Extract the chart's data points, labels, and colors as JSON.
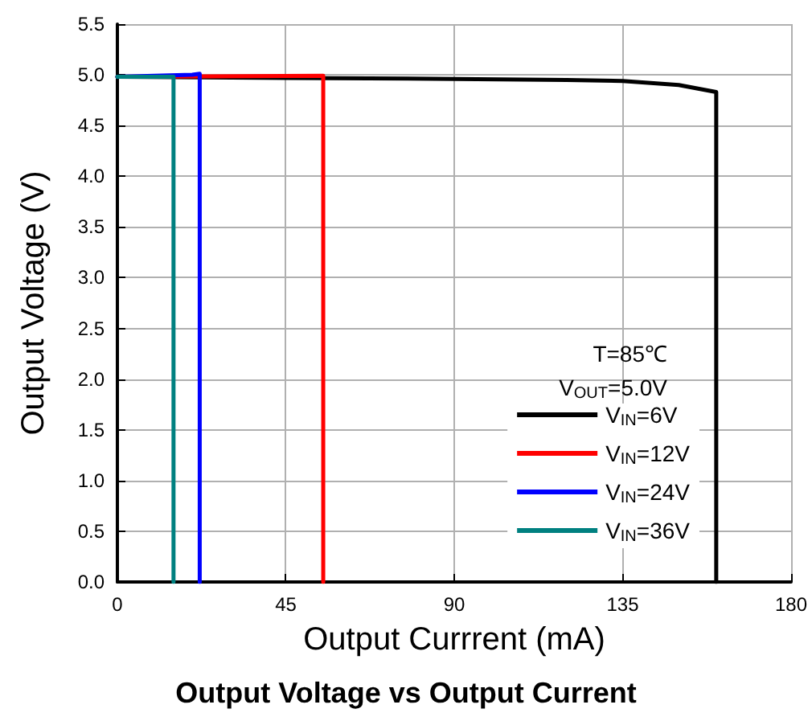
{
  "chart_data": {
    "type": "line",
    "title": "Output Voltage vs Output Current",
    "xlabel": "Output Currrent (mA)",
    "ylabel": "Output Voltage (V)",
    "annotations": [
      "T=85℃",
      "V$_{OUT}$=5.0V"
    ],
    "series": [
      {
        "name": "V$_{IN}$=6V",
        "color": "#000000",
        "x": [
          0,
          45,
          90,
          120,
          135,
          150,
          160,
          160
        ],
        "values": [
          4.98,
          4.97,
          4.96,
          4.95,
          4.94,
          4.9,
          4.83,
          0
        ]
      },
      {
        "name": "V$_{IN}$=12V",
        "color": "#ff0000",
        "x": [
          0,
          55,
          55
        ],
        "values": [
          4.98,
          4.99,
          0
        ]
      },
      {
        "name": "V$_{IN}$=24V",
        "color": "#0000ff",
        "x": [
          0,
          20,
          22,
          22
        ],
        "values": [
          4.98,
          5.0,
          5.01,
          0
        ]
      },
      {
        "name": "V$_{IN}$=36V",
        "color": "#008080",
        "x": [
          0,
          15,
          15
        ],
        "values": [
          4.98,
          4.98,
          0
        ]
      }
    ],
    "xlim": [
      0,
      180
    ],
    "xticks": [
      0,
      45,
      90,
      135,
      180
    ],
    "ylim": [
      0,
      5.5
    ],
    "yticks": [
      {
        "value": 0,
        "label": "0.0"
      },
      {
        "value": 0.5,
        "label": "0.5"
      },
      {
        "value": 1,
        "label": "1.0"
      },
      {
        "value": 1.5,
        "label": "1.5"
      },
      {
        "value": 2,
        "label": "2.0"
      },
      {
        "value": 2.5,
        "label": "2.5"
      },
      {
        "value": 3,
        "label": "3.0"
      },
      {
        "value": 3.5,
        "label": "3.5"
      },
      {
        "value": 4,
        "label": "4.0"
      },
      {
        "value": 4.5,
        "label": "4.5"
      },
      {
        "value": 5,
        "label": "5.0"
      },
      {
        "value": 5.5,
        "label": "5.5"
      }
    ],
    "grid": true,
    "legend": "bottom right",
    "marker": "none",
    "line_style": "solid"
  }
}
